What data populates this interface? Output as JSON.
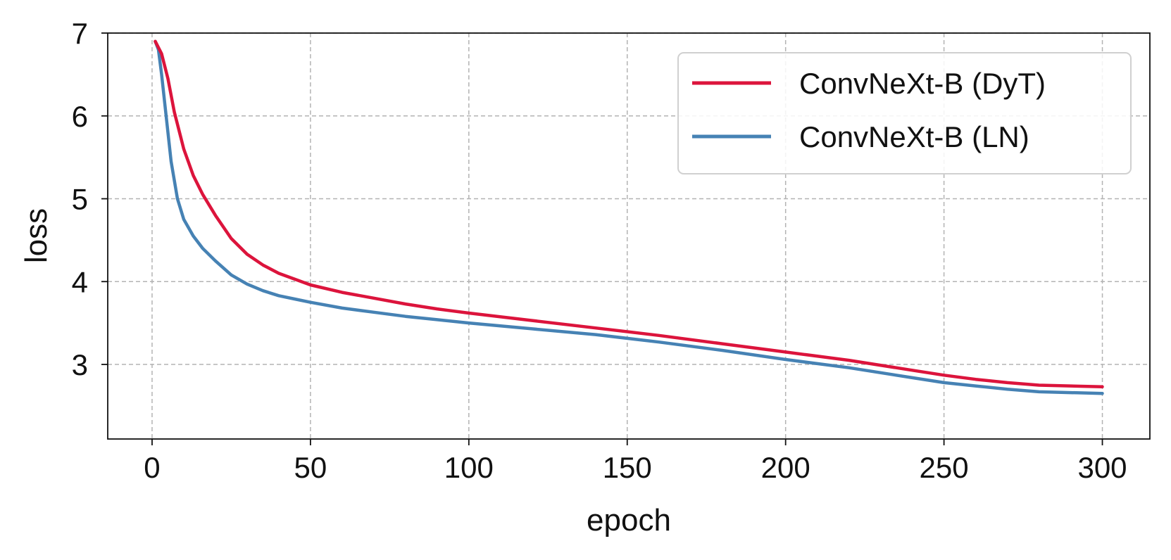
{
  "chart_data": {
    "type": "line",
    "title": "",
    "xlabel": "epoch",
    "ylabel": "loss",
    "xlim": [
      -14,
      315
    ],
    "ylim": [
      2.1,
      7.0
    ],
    "xticks": [
      0,
      50,
      100,
      150,
      200,
      250,
      300
    ],
    "xtick_labels": [
      "0",
      "50",
      "100",
      "150",
      "200",
      "250",
      "300"
    ],
    "yticks": [
      3,
      4,
      5,
      6,
      7
    ],
    "ytick_labels": [
      "3",
      "4",
      "5",
      "6",
      "7"
    ],
    "grid": true,
    "legend_position": "top-right",
    "series": [
      {
        "name": "ConvNeXt-B (DyT)",
        "color": "#dc143c",
        "x": [
          1,
          3,
          5,
          7,
          10,
          13,
          16,
          20,
          25,
          30,
          35,
          40,
          45,
          50,
          60,
          70,
          80,
          90,
          100,
          120,
          140,
          160,
          180,
          200,
          220,
          240,
          250,
          260,
          270,
          280,
          290,
          300
        ],
        "y": [
          6.9,
          6.75,
          6.45,
          6.05,
          5.6,
          5.28,
          5.05,
          4.8,
          4.52,
          4.33,
          4.2,
          4.1,
          4.03,
          3.96,
          3.87,
          3.8,
          3.73,
          3.67,
          3.62,
          3.53,
          3.44,
          3.35,
          3.25,
          3.15,
          3.05,
          2.93,
          2.87,
          2.82,
          2.78,
          2.75,
          2.74,
          2.73
        ]
      },
      {
        "name": "ConvNeXt-B (LN)",
        "color": "#4682b4",
        "x": [
          1,
          2,
          3,
          4,
          5,
          6,
          8,
          10,
          13,
          16,
          20,
          25,
          30,
          35,
          40,
          45,
          50,
          60,
          70,
          80,
          90,
          100,
          120,
          140,
          160,
          180,
          200,
          220,
          240,
          250,
          260,
          270,
          280,
          290,
          300
        ],
        "y": [
          6.9,
          6.8,
          6.5,
          6.15,
          5.8,
          5.45,
          5.0,
          4.75,
          4.55,
          4.4,
          4.25,
          4.08,
          3.97,
          3.89,
          3.83,
          3.79,
          3.75,
          3.68,
          3.63,
          3.58,
          3.54,
          3.5,
          3.43,
          3.36,
          3.27,
          3.17,
          3.06,
          2.96,
          2.84,
          2.78,
          2.74,
          2.7,
          2.67,
          2.66,
          2.65
        ]
      }
    ]
  }
}
